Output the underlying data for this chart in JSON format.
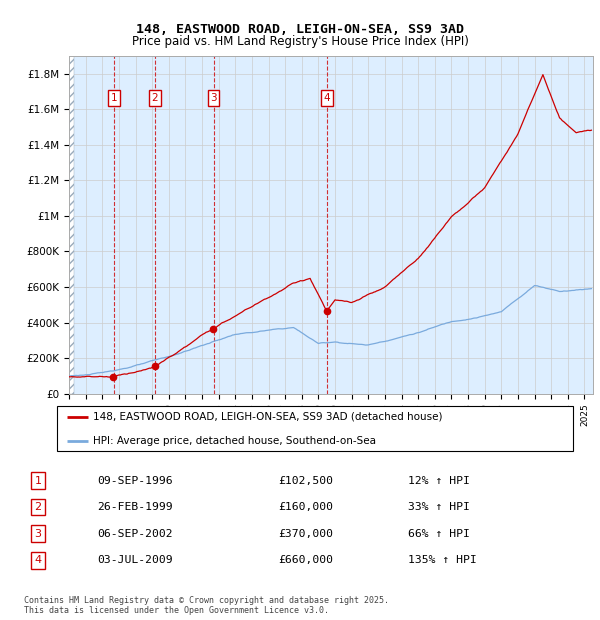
{
  "title_line1": "148, EASTWOOD ROAD, LEIGH-ON-SEA, SS9 3AD",
  "title_line2": "Price paid vs. HM Land Registry's House Price Index (HPI)",
  "sales": [
    {
      "num": 1,
      "date": "09-SEP-1996",
      "year": 1996.69,
      "price": 102500,
      "pct": "12%"
    },
    {
      "num": 2,
      "date": "26-FEB-1999",
      "year": 1999.16,
      "price": 160000,
      "pct": "33%"
    },
    {
      "num": 3,
      "date": "06-SEP-2002",
      "year": 2002.69,
      "price": 370000,
      "pct": "66%"
    },
    {
      "num": 4,
      "date": "03-JUL-2009",
      "year": 2009.5,
      "price": 660000,
      "pct": "135%"
    }
  ],
  "legend_line1": "148, EASTWOOD ROAD, LEIGH-ON-SEA, SS9 3AD (detached house)",
  "legend_line2": "HPI: Average price, detached house, Southend-on-Sea",
  "footer": "Contains HM Land Registry data © Crown copyright and database right 2025.\nThis data is licensed under the Open Government Licence v3.0.",
  "red_color": "#cc0000",
  "blue_color": "#7aaadd",
  "ylim_max": 1900000,
  "xlim_start": 1994.0,
  "xlim_end": 2025.5,
  "yticks": [
    0,
    200000,
    400000,
    600000,
    800000,
    1000000,
    1200000,
    1400000,
    1600000,
    1800000
  ],
  "ytick_labels": [
    "£0",
    "£200K",
    "£400K",
    "£600K",
    "£800K",
    "£1M",
    "£1.2M",
    "£1.4M",
    "£1.6M",
    "£1.8M"
  ],
  "background_color": "#ffffff",
  "grid_color": "#cccccc",
  "plot_bg": "#ddeeff",
  "shade_color": "#ddeeff"
}
